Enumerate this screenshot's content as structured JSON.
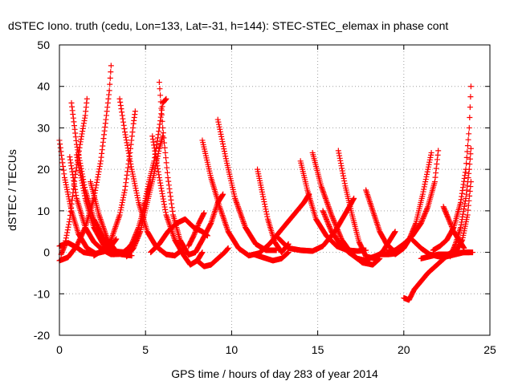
{
  "chart_data": {
    "type": "scatter",
    "title": "dSTEC Iono. truth (cedu, Lon=133, Lat=-31, h=144): STEC-STEC_elemax in phase cont",
    "xlabel": "GPS time / hours of day 283 of year 2014",
    "ylabel": "dSTEC  / TECUs",
    "xlim": [
      0,
      25
    ],
    "ylim": [
      -20,
      50
    ],
    "x_ticks": [
      0,
      5,
      10,
      15,
      20,
      25
    ],
    "y_ticks": [
      -20,
      -10,
      0,
      10,
      20,
      30,
      40,
      50
    ],
    "grid": true,
    "marker": "+",
    "color": "#ff0000",
    "series": [
      {
        "points": [
          [
            0.0,
            27.0
          ],
          [
            0.3,
            18.0
          ],
          [
            0.7,
            10.0
          ],
          [
            1.1,
            4.5
          ],
          [
            1.6,
            1.0
          ],
          [
            2.1,
            -0.3
          ],
          [
            2.6,
            0.2
          ],
          [
            3.0,
            1.5
          ],
          [
            3.3,
            3.2
          ]
        ]
      },
      {
        "points": [
          [
            0.0,
            -2.0
          ],
          [
            0.5,
            -1.2
          ],
          [
            1.0,
            1.5
          ],
          [
            1.5,
            6.0
          ],
          [
            2.0,
            13.0
          ],
          [
            2.4,
            22.0
          ],
          [
            2.7,
            32.0
          ],
          [
            2.9,
            39.0
          ],
          [
            3.0,
            45.0
          ]
        ]
      },
      {
        "points": [
          [
            0.0,
            1.5
          ],
          [
            0.5,
            2.3
          ],
          [
            1.0,
            1.2
          ],
          [
            1.4,
            0.0
          ],
          [
            2.0,
            -0.4
          ]
        ]
      },
      {
        "points": [
          [
            0.1,
            -0.5
          ],
          [
            0.3,
            1.5
          ],
          [
            0.6,
            8.0
          ],
          [
            0.9,
            18.0
          ],
          [
            1.2,
            26.0
          ],
          [
            1.5,
            33.0
          ],
          [
            1.6,
            37.0
          ]
        ]
      },
      {
        "points": [
          [
            0.6,
            23.0
          ],
          [
            1.0,
            13.0
          ],
          [
            1.5,
            6.0
          ],
          [
            2.0,
            2.5
          ],
          [
            2.5,
            0.6
          ],
          [
            3.0,
            -0.5
          ],
          [
            3.5,
            -0.3
          ]
        ]
      },
      {
        "points": [
          [
            0.7,
            36.0
          ],
          [
            1.0,
            26.0
          ],
          [
            1.5,
            15.0
          ],
          [
            2.0,
            8.0
          ],
          [
            2.6,
            3.0
          ],
          [
            3.1,
            0.7
          ],
          [
            3.6,
            -0.5
          ],
          [
            4.2,
            -0.8
          ]
        ]
      },
      {
        "points": [
          [
            1.0,
            23.5
          ],
          [
            1.5,
            13.0
          ],
          [
            2.0,
            6.0
          ],
          [
            2.6,
            1.5
          ],
          [
            3.1,
            -0.5
          ],
          [
            3.6,
            -0.4
          ],
          [
            4.0,
            1.0
          ],
          [
            4.5,
            3.0
          ]
        ]
      },
      {
        "points": [
          [
            1.8,
            17.0
          ],
          [
            2.3,
            9.0
          ],
          [
            2.8,
            3.0
          ],
          [
            3.3,
            0.2
          ],
          [
            3.8,
            0.0
          ],
          [
            4.2,
            2.0
          ],
          [
            4.6,
            6.0
          ],
          [
            5.0,
            12.0
          ],
          [
            5.3,
            17.0
          ]
        ]
      },
      {
        "points": [
          [
            2.0,
            -0.8
          ],
          [
            2.5,
            0.5
          ],
          [
            3.0,
            3.0
          ],
          [
            3.5,
            9.0
          ],
          [
            3.8,
            15.0
          ],
          [
            4.1,
            24.0
          ],
          [
            4.3,
            31.0
          ],
          [
            4.4,
            34.0
          ]
        ]
      },
      {
        "points": [
          [
            3.5,
            37.0
          ],
          [
            3.8,
            29.0
          ],
          [
            4.2,
            20.0
          ],
          [
            4.6,
            12.0
          ],
          [
            5.1,
            5.0
          ],
          [
            5.6,
            1.5
          ],
          [
            6.2,
            -0.5
          ],
          [
            6.7,
            -0.8
          ],
          [
            7.2,
            0.8
          ]
        ]
      },
      {
        "points": [
          [
            3.9,
            -1.0
          ],
          [
            4.3,
            1.0
          ],
          [
            4.7,
            5.0
          ],
          [
            5.1,
            12.0
          ],
          [
            5.5,
            19.0
          ],
          [
            5.8,
            25.0
          ],
          [
            6.0,
            28.0
          ]
        ]
      },
      {
        "points": [
          [
            4.8,
            9.0
          ],
          [
            5.0,
            13.0
          ],
          [
            5.2,
            17.0
          ],
          [
            5.5,
            22.0
          ],
          [
            5.8,
            30.0
          ],
          [
            6.0,
            36.0
          ],
          [
            6.2,
            37.0
          ]
        ]
      },
      {
        "points": [
          [
            5.4,
            28.0
          ],
          [
            5.8,
            18.0
          ],
          [
            6.2,
            9.0
          ],
          [
            6.7,
            3.0
          ],
          [
            7.2,
            -0.6
          ],
          [
            7.6,
            -3.0
          ],
          [
            8.0,
            -2.0
          ],
          [
            8.3,
            0.0
          ]
        ]
      },
      {
        "points": [
          [
            5.8,
            41.0
          ],
          [
            6.0,
            30.0
          ],
          [
            6.3,
            18.0
          ],
          [
            6.6,
            9.0
          ],
          [
            7.0,
            3.0
          ],
          [
            7.5,
            -0.6
          ],
          [
            7.9,
            0.0
          ],
          [
            8.3,
            3.0
          ],
          [
            8.8,
            7.0
          ],
          [
            9.2,
            12.0
          ],
          [
            9.5,
            14.0
          ]
        ]
      },
      {
        "points": [
          [
            5.3,
            0.0
          ],
          [
            5.8,
            2.0
          ],
          [
            6.3,
            5.0
          ],
          [
            6.8,
            7.0
          ],
          [
            7.3,
            8.0
          ],
          [
            7.8,
            6.0
          ],
          [
            8.3,
            5.0
          ],
          [
            8.6,
            4.0
          ]
        ]
      },
      {
        "points": [
          [
            7.5,
            1.5
          ],
          [
            7.8,
            4.0
          ],
          [
            8.1,
            7.0
          ],
          [
            8.4,
            9.5
          ]
        ]
      },
      {
        "points": [
          [
            8.0,
            -2.0
          ],
          [
            8.4,
            -3.4
          ],
          [
            8.8,
            -3.0
          ],
          [
            9.2,
            -1.5
          ],
          [
            9.6,
            0.0
          ],
          [
            9.8,
            1.0
          ]
        ]
      },
      {
        "points": [
          [
            8.3,
            27.0
          ],
          [
            8.8,
            18.0
          ],
          [
            9.3,
            11.0
          ],
          [
            9.8,
            5.0
          ],
          [
            10.4,
            1.0
          ],
          [
            11.0,
            -0.8
          ],
          [
            11.6,
            -0.2
          ],
          [
            12.2,
            2.0
          ],
          [
            12.8,
            5.0
          ],
          [
            13.5,
            8.5
          ],
          [
            14.2,
            12.0
          ],
          [
            14.5,
            14.0
          ]
        ]
      },
      {
        "points": [
          [
            9.2,
            32.0
          ],
          [
            9.7,
            22.0
          ],
          [
            10.2,
            13.0
          ],
          [
            10.8,
            6.0
          ],
          [
            11.4,
            2.0
          ],
          [
            12.0,
            0.5
          ],
          [
            12.6,
            0.5
          ]
        ]
      },
      {
        "points": [
          [
            11.5,
            20.0
          ],
          [
            11.8,
            14.0
          ],
          [
            12.1,
            8.0
          ],
          [
            12.5,
            2.5
          ],
          [
            12.9,
            0.0
          ],
          [
            13.3,
            2.0
          ]
        ]
      },
      {
        "points": [
          [
            11.3,
            -0.5
          ],
          [
            11.8,
            -1.2
          ],
          [
            12.4,
            -2.0
          ],
          [
            12.9,
            -1.5
          ],
          [
            13.3,
            0.0
          ]
        ]
      },
      {
        "points": [
          [
            14.0,
            22.0
          ],
          [
            14.4,
            15.0
          ],
          [
            14.9,
            8.0
          ],
          [
            15.5,
            4.0
          ],
          [
            16.1,
            1.5
          ],
          [
            16.7,
            0.5
          ],
          [
            17.3,
            0.3
          ],
          [
            17.8,
            0.5
          ]
        ]
      },
      {
        "points": [
          [
            12.7,
            3.5
          ],
          [
            13.3,
            1.0
          ],
          [
            14.0,
            0.5
          ],
          [
            14.7,
            0.3
          ],
          [
            15.3,
            1.5
          ],
          [
            16.0,
            5.0
          ],
          [
            16.7,
            10.0
          ],
          [
            17.1,
            13.0
          ]
        ]
      },
      {
        "points": [
          [
            14.7,
            24.0
          ],
          [
            15.2,
            16.0
          ],
          [
            15.8,
            9.0
          ],
          [
            16.4,
            3.0
          ],
          [
            17.0,
            -0.5
          ],
          [
            17.6,
            -2.5
          ],
          [
            18.2,
            -3.0
          ],
          [
            18.6,
            -1.5
          ]
        ]
      },
      {
        "points": [
          [
            15.3,
            10.0
          ],
          [
            15.8,
            5.0
          ],
          [
            16.3,
            2.0
          ],
          [
            16.8,
            0.0
          ],
          [
            17.3,
            -1.5
          ],
          [
            17.8,
            -2.0
          ]
        ]
      },
      {
        "points": [
          [
            16.2,
            24.5
          ],
          [
            16.6,
            16.0
          ],
          [
            17.0,
            9.0
          ],
          [
            17.4,
            2.5
          ],
          [
            17.8,
            -1.0
          ],
          [
            18.3,
            -1.5
          ],
          [
            18.8,
            0.3
          ],
          [
            19.2,
            3.0
          ],
          [
            19.5,
            5.0
          ]
        ]
      },
      {
        "points": [
          [
            17.8,
            15.0
          ],
          [
            18.2,
            10.0
          ],
          [
            18.6,
            5.0
          ],
          [
            19.0,
            2.0
          ],
          [
            19.5,
            0.0
          ]
        ]
      },
      {
        "points": [
          [
            17.6,
            -2.5
          ],
          [
            18.1,
            -1.3
          ],
          [
            18.6,
            -0.5
          ],
          [
            19.1,
            -0.5
          ],
          [
            19.5,
            -0.3
          ]
        ]
      },
      {
        "points": [
          [
            19.0,
            0.0
          ],
          [
            19.5,
            0.5
          ],
          [
            20.0,
            2.0
          ],
          [
            20.5,
            4.0
          ],
          [
            21.0,
            7.0
          ],
          [
            21.4,
            11.0
          ],
          [
            21.8,
            17.0
          ],
          [
            22.0,
            24.5
          ]
        ]
      },
      {
        "points": [
          [
            19.5,
            -0.5
          ],
          [
            20.0,
            1.0
          ],
          [
            20.3,
            3.0
          ],
          [
            20.7,
            7.0
          ],
          [
            21.1,
            14.0
          ],
          [
            21.4,
            20.0
          ],
          [
            21.6,
            24.0
          ]
        ]
      },
      {
        "points": [
          [
            20.0,
            -11.0
          ],
          [
            20.3,
            -11.5
          ],
          [
            20.6,
            -9.0
          ],
          [
            21.0,
            -7.0
          ],
          [
            21.4,
            -5.0
          ],
          [
            21.8,
            -3.5
          ],
          [
            22.2,
            -2.0
          ],
          [
            22.6,
            -0.5
          ],
          [
            22.9,
            0.5
          ]
        ]
      },
      {
        "points": [
          [
            20.5,
            3.0
          ],
          [
            21.0,
            1.0
          ],
          [
            21.5,
            -0.5
          ],
          [
            22.0,
            -1.0
          ],
          [
            22.5,
            -1.0
          ],
          [
            23.0,
            -0.5
          ],
          [
            23.5,
            0.0
          ],
          [
            23.8,
            0.0
          ]
        ]
      },
      {
        "points": [
          [
            21.7,
            0.5
          ],
          [
            22.1,
            1.5
          ],
          [
            22.5,
            3.0
          ],
          [
            22.9,
            6.0
          ],
          [
            23.3,
            12.0
          ],
          [
            23.6,
            20.0
          ],
          [
            23.8,
            30.0
          ],
          [
            23.9,
            40.0
          ]
        ]
      },
      {
        "points": [
          [
            22.3,
            11.0
          ],
          [
            22.6,
            8.0
          ],
          [
            22.9,
            5.0
          ],
          [
            23.2,
            3.0
          ],
          [
            23.5,
            1.0
          ]
        ]
      },
      {
        "points": [
          [
            22.7,
            -1.0
          ],
          [
            23.0,
            2.0
          ],
          [
            23.3,
            6.0
          ],
          [
            23.6,
            13.0
          ],
          [
            23.8,
            20.0
          ],
          [
            23.9,
            25.0
          ]
        ]
      },
      {
        "points": [
          [
            23.0,
            0.0
          ],
          [
            23.4,
            3.0
          ],
          [
            23.7,
            9.0
          ],
          [
            23.9,
            17.0
          ]
        ]
      },
      {
        "points": [
          [
            21.0,
            -1.5
          ],
          [
            21.5,
            -1.0
          ],
          [
            22.0,
            -0.5
          ],
          [
            22.5,
            -0.5
          ],
          [
            23.0,
            -0.2
          ],
          [
            23.5,
            0.0
          ],
          [
            24.0,
            0.0
          ]
        ]
      }
    ]
  }
}
